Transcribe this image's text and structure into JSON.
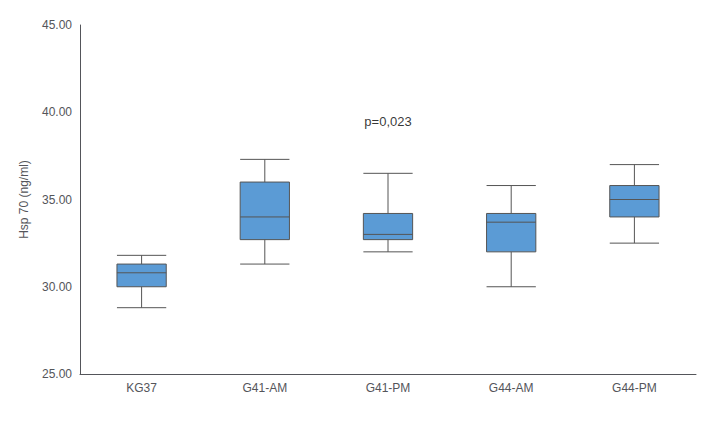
{
  "chart_data": {
    "type": "boxplot",
    "categories": [
      "KG37",
      "G41-AM",
      "G41-PM",
      "G44-AM",
      "G44-PM"
    ],
    "values": [
      {
        "min": 28.8,
        "q1": 30.0,
        "median": 30.8,
        "q3": 31.3,
        "max": 31.8
      },
      {
        "min": 31.3,
        "q1": 32.7,
        "median": 34.0,
        "q3": 36.0,
        "max": 37.3
      },
      {
        "min": 32.0,
        "q1": 32.7,
        "median": 33.0,
        "q3": 34.2,
        "max": 36.5
      },
      {
        "min": 30.0,
        "q1": 32.0,
        "median": 33.7,
        "q3": 34.2,
        "max": 35.8
      },
      {
        "min": 32.5,
        "q1": 34.0,
        "median": 35.0,
        "q3": 35.8,
        "max": 37.0
      }
    ],
    "color": "#5B9BD5",
    "ylabel": "Hsp 70 (ng/ml)",
    "ylim": [
      25.0,
      45.0
    ],
    "yticks": [
      {
        "value": 25,
        "label": "25.00"
      },
      {
        "value": 30,
        "label": "30.00"
      },
      {
        "value": 35,
        "label": "35.00"
      },
      {
        "value": 40,
        "label": "40.00"
      },
      {
        "value": 45,
        "label": "45.00"
      }
    ],
    "annotations": [
      {
        "text": "p=0,023",
        "x": "G41-PM",
        "y": 38.8
      }
    ],
    "grid": false
  }
}
